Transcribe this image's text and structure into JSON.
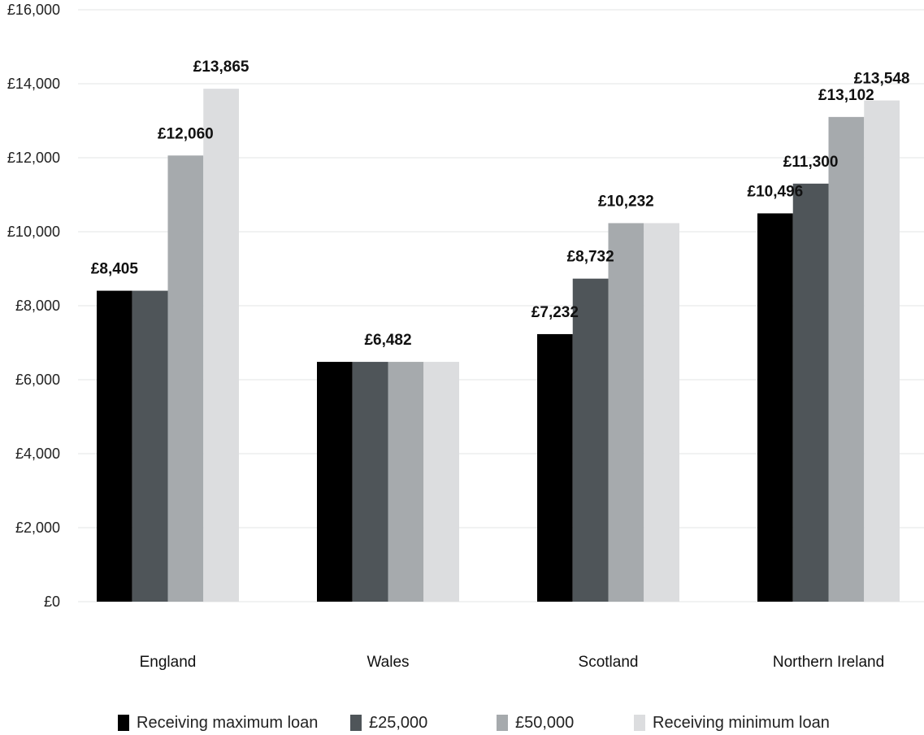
{
  "chart_data": {
    "type": "bar",
    "categories": [
      "England",
      "Wales",
      "Scotland",
      "Northern Ireland"
    ],
    "series": [
      {
        "name": "Receiving maximum loan",
        "color": "#000000",
        "values": [
          8405,
          6482,
          7232,
          10496
        ]
      },
      {
        "name": "£25,000",
        "color": "#4f5559",
        "values": [
          8405,
          6482,
          8732,
          11300
        ]
      },
      {
        "name": "£50,000",
        "color": "#a6aaad",
        "values": [
          12060,
          6482,
          10232,
          13102
        ]
      },
      {
        "name": "Receiving minimum loan",
        "color": "#dcdddf",
        "values": [
          13865,
          6482,
          10232,
          13548
        ]
      }
    ],
    "data_labels": [
      {
        "category": "England",
        "series": "Receiving maximum loan",
        "text": "£8,405"
      },
      {
        "category": "England",
        "series": "£50,000",
        "text": "£12,060"
      },
      {
        "category": "England",
        "series": "Receiving minimum loan",
        "text": "£13,865"
      },
      {
        "category": "Wales",
        "series": "all",
        "text": "£6,482"
      },
      {
        "category": "Scotland",
        "series": "Receiving maximum loan",
        "text": "£7,232"
      },
      {
        "category": "Scotland",
        "series": "£25,000",
        "text": "£8,732"
      },
      {
        "category": "Scotland",
        "series": "£50,000",
        "text": "£10,232"
      },
      {
        "category": "Northern Ireland",
        "series": "Receiving maximum loan",
        "text": "£10,496"
      },
      {
        "category": "Northern Ireland",
        "series": "£25,000",
        "text": "£11,300"
      },
      {
        "category": "Northern Ireland",
        "series": "£50,000",
        "text": "£13,102"
      },
      {
        "category": "Northern Ireland",
        "series": "Receiving minimum loan",
        "text": "£13,548"
      }
    ],
    "y_ticks": [
      "£0",
      "£2,000",
      "£4,000",
      "£6,000",
      "£8,000",
      "£10,000",
      "£12,000",
      "£14,000",
      "£16,000"
    ],
    "ylim": [
      0,
      16000
    ],
    "grid": true,
    "legend_position": "bottom",
    "title": "",
    "xlabel": "",
    "ylabel": ""
  }
}
